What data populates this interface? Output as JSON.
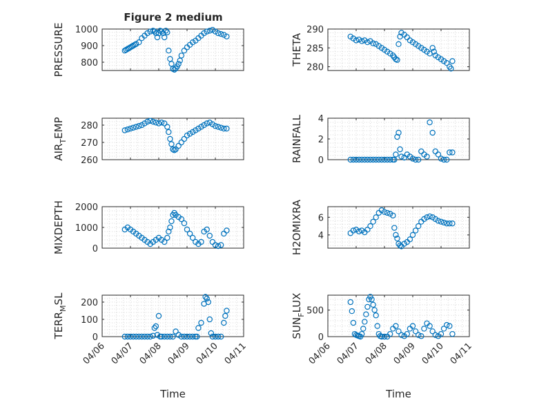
{
  "figure_title": "Figure 2 medium",
  "colors": {
    "marker": "#0072BD",
    "axes": "#262626",
    "grid": "#d6d6d6"
  },
  "chart_data": [
    {
      "type": "scatter",
      "name": "pressure",
      "ylabel": "PRESSURE",
      "ylabel_main": "PRESSURE",
      "ylabel_sub": "",
      "ylabel_rest": "",
      "title": "Figure 2 medium",
      "xlim": [
        0,
        5
      ],
      "ylim": [
        750,
        1000
      ],
      "yticks": [
        800,
        900,
        1000
      ],
      "ytick_labels": [
        "800",
        "900",
        "1000"
      ],
      "xticks": [
        0,
        1,
        2,
        3,
        4,
        5
      ],
      "xtick_labels": [
        "04/06",
        "04/07",
        "04/08",
        "04/09",
        "04/10",
        "04/11"
      ],
      "show_xtick_labels": false,
      "xlabel": "",
      "grid": true,
      "x": [
        0.8,
        0.85,
        0.9,
        0.95,
        1.0,
        1.05,
        1.1,
        1.15,
        1.2,
        1.3,
        1.4,
        1.5,
        1.6,
        1.7,
        1.8,
        1.85,
        1.9,
        1.95,
        2.0,
        2.05,
        2.1,
        2.15,
        2.2,
        2.25,
        2.3,
        2.35,
        2.4,
        2.45,
        2.5,
        2.55,
        2.6,
        2.65,
        2.7,
        2.75,
        2.8,
        2.9,
        3.0,
        3.1,
        3.2,
        3.3,
        3.4,
        3.5,
        3.6,
        3.7,
        3.8,
        3.9,
        4.0,
        4.1,
        4.2,
        4.3,
        4.4
      ],
      "y": [
        870,
        875,
        880,
        885,
        890,
        895,
        900,
        905,
        910,
        920,
        945,
        960,
        975,
        985,
        990,
        985,
        975,
        950,
        975,
        990,
        985,
        975,
        950,
        990,
        980,
        870,
        820,
        790,
        760,
        755,
        762,
        775,
        790,
        810,
        840,
        870,
        890,
        905,
        920,
        930,
        945,
        960,
        975,
        985,
        990,
        995,
        985,
        975,
        970,
        965,
        955
      ]
    },
    {
      "type": "scatter",
      "name": "theta",
      "ylabel": "THETA",
      "ylabel_main": "THETA",
      "ylabel_sub": "",
      "ylabel_rest": "",
      "xlim": [
        0,
        5
      ],
      "ylim": [
        279,
        290
      ],
      "yticks": [
        280,
        285,
        290
      ],
      "ytick_labels": [
        "280",
        "285",
        "290"
      ],
      "xticks": [
        0,
        1,
        2,
        3,
        4,
        5
      ],
      "xtick_labels": [
        "04/06",
        "04/07",
        "04/08",
        "04/09",
        "04/10",
        "04/11"
      ],
      "show_xtick_labels": false,
      "xlabel": "",
      "grid": true,
      "x": [
        0.8,
        0.9,
        1.0,
        1.1,
        1.2,
        1.3,
        1.4,
        1.5,
        1.6,
        1.7,
        1.8,
        1.9,
        2.0,
        2.1,
        2.2,
        2.3,
        2.35,
        2.4,
        2.45,
        2.5,
        2.55,
        2.6,
        2.7,
        2.8,
        2.9,
        3.0,
        3.1,
        3.2,
        3.3,
        3.4,
        3.5,
        3.6,
        3.7,
        3.75,
        3.8,
        3.9,
        4.0,
        4.1,
        4.2,
        4.3,
        4.35,
        4.4
      ],
      "y": [
        288,
        287.5,
        287,
        287.2,
        286.8,
        287,
        286.5,
        286.8,
        286.2,
        286,
        285.5,
        285,
        284.5,
        284,
        283.5,
        283,
        282.5,
        282,
        281.8,
        286,
        288,
        289,
        288.5,
        287.8,
        287,
        286.5,
        286,
        285.5,
        285,
        284.5,
        284,
        283.5,
        285,
        284,
        283,
        282.5,
        282,
        281.5,
        281,
        280,
        279.5,
        281.5
      ]
    },
    {
      "type": "scatter",
      "name": "air-temp",
      "ylabel": "AIR_TEMP",
      "ylabel_main": "AIR",
      "ylabel_sub": "T",
      "ylabel_rest": "EMP",
      "xlim": [
        0,
        5
      ],
      "ylim": [
        260,
        284
      ],
      "yticks": [
        260,
        270,
        280
      ],
      "ytick_labels": [
        "260",
        "270",
        "280"
      ],
      "xticks": [
        0,
        1,
        2,
        3,
        4,
        5
      ],
      "xtick_labels": [
        "04/06",
        "04/07",
        "04/08",
        "04/09",
        "04/10",
        "04/11"
      ],
      "show_xtick_labels": false,
      "xlabel": "",
      "grid": true,
      "x": [
        0.8,
        0.9,
        1.0,
        1.1,
        1.2,
        1.3,
        1.4,
        1.5,
        1.6,
        1.7,
        1.8,
        1.9,
        2.0,
        2.1,
        2.2,
        2.3,
        2.35,
        2.4,
        2.45,
        2.5,
        2.55,
        2.6,
        2.7,
        2.8,
        2.9,
        3.0,
        3.1,
        3.2,
        3.3,
        3.4,
        3.5,
        3.6,
        3.7,
        3.8,
        3.9,
        4.0,
        4.1,
        4.2,
        4.3,
        4.4
      ],
      "y": [
        277,
        277.5,
        278,
        278.5,
        279,
        279.5,
        280,
        281,
        282,
        282.5,
        282,
        281.5,
        281,
        281.5,
        281,
        279,
        276,
        272,
        269,
        266,
        265.5,
        266,
        268,
        270,
        272,
        274,
        275,
        276,
        277,
        278,
        279,
        280,
        281,
        281.5,
        280.5,
        279.5,
        279,
        278.5,
        278,
        278
      ]
    },
    {
      "type": "scatter",
      "name": "rainfall",
      "ylabel": "RAINFALL",
      "ylabel_main": "RAINFALL",
      "ylabel_sub": "",
      "ylabel_rest": "",
      "xlim": [
        0,
        5
      ],
      "ylim": [
        0,
        4
      ],
      "yticks": [
        0,
        2,
        4
      ],
      "ytick_labels": [
        "0",
        "2",
        "4"
      ],
      "xticks": [
        0,
        1,
        2,
        3,
        4,
        5
      ],
      "xtick_labels": [
        "04/06",
        "04/07",
        "04/08",
        "04/09",
        "04/10",
        "04/11"
      ],
      "show_xtick_labels": false,
      "xlabel": "",
      "grid": true,
      "x": [
        0.8,
        0.9,
        1.0,
        1.1,
        1.2,
        1.3,
        1.4,
        1.5,
        1.6,
        1.7,
        1.8,
        1.9,
        2.0,
        2.1,
        2.2,
        2.3,
        2.35,
        2.4,
        2.45,
        2.5,
        2.55,
        2.6,
        2.7,
        2.8,
        2.9,
        3.0,
        3.1,
        3.2,
        3.3,
        3.4,
        3.5,
        3.6,
        3.7,
        3.8,
        3.9,
        4.0,
        4.1,
        4.2,
        4.3,
        4.4
      ],
      "y": [
        0,
        0,
        0,
        0,
        0,
        0,
        0,
        0,
        0,
        0,
        0,
        0,
        0,
        0,
        0,
        0,
        0,
        0.5,
        2.2,
        2.6,
        1.0,
        0.3,
        0.2,
        0.5,
        0.3,
        0.1,
        0,
        0,
        0.8,
        0.5,
        0.3,
        3.6,
        2.6,
        0.8,
        0.5,
        0.1,
        0,
        0,
        0.7,
        0.7
      ]
    },
    {
      "type": "scatter",
      "name": "mixdepth",
      "ylabel": "MIXDEPTH",
      "ylabel_main": "MIXDEPTH",
      "ylabel_sub": "",
      "ylabel_rest": "",
      "xlim": [
        0,
        5
      ],
      "ylim": [
        0,
        2000
      ],
      "yticks": [
        0,
        1000,
        2000
      ],
      "ytick_labels": [
        "0",
        "1000",
        "2000"
      ],
      "xticks": [
        0,
        1,
        2,
        3,
        4,
        5
      ],
      "xtick_labels": [
        "04/06",
        "04/07",
        "04/08",
        "04/09",
        "04/10",
        "04/11"
      ],
      "show_xtick_labels": false,
      "xlabel": "",
      "grid": true,
      "x": [
        0.8,
        0.9,
        1.0,
        1.1,
        1.2,
        1.3,
        1.4,
        1.5,
        1.6,
        1.7,
        1.8,
        1.9,
        2.0,
        2.1,
        2.2,
        2.3,
        2.35,
        2.4,
        2.45,
        2.5,
        2.55,
        2.6,
        2.7,
        2.8,
        2.9,
        3.0,
        3.1,
        3.2,
        3.3,
        3.4,
        3.5,
        3.6,
        3.7,
        3.8,
        3.9,
        4.0,
        4.1,
        4.2,
        4.3,
        4.4
      ],
      "y": [
        900,
        1000,
        900,
        800,
        700,
        600,
        500,
        400,
        300,
        200,
        300,
        400,
        500,
        400,
        300,
        500,
        800,
        1000,
        1300,
        1600,
        1700,
        1600,
        1500,
        1400,
        1200,
        900,
        700,
        500,
        300,
        200,
        300,
        800,
        900,
        600,
        300,
        150,
        100,
        150,
        700,
        850
      ]
    },
    {
      "type": "scatter",
      "name": "h2omixra",
      "ylabel": "H2OMIXRA",
      "ylabel_main": "H2OMIXRA",
      "ylabel_sub": "",
      "ylabel_rest": "",
      "xlim": [
        0,
        5
      ],
      "ylim": [
        2.5,
        7.2
      ],
      "yticks": [
        4,
        6
      ],
      "ytick_labels": [
        "4",
        "6"
      ],
      "xticks": [
        0,
        1,
        2,
        3,
        4,
        5
      ],
      "xtick_labels": [
        "04/06",
        "04/07",
        "04/08",
        "04/09",
        "04/10",
        "04/11"
      ],
      "show_xtick_labels": false,
      "xlabel": "",
      "grid": true,
      "x": [
        0.8,
        0.9,
        1.0,
        1.1,
        1.2,
        1.3,
        1.4,
        1.5,
        1.6,
        1.7,
        1.8,
        1.9,
        2.0,
        2.1,
        2.2,
        2.3,
        2.35,
        2.4,
        2.45,
        2.5,
        2.55,
        2.6,
        2.7,
        2.8,
        2.9,
        3.0,
        3.1,
        3.2,
        3.3,
        3.4,
        3.5,
        3.6,
        3.7,
        3.8,
        3.9,
        4.0,
        4.1,
        4.2,
        4.3,
        4.4
      ],
      "y": [
        4.2,
        4.5,
        4.6,
        4.4,
        4.5,
        4.3,
        4.6,
        5.0,
        5.5,
        6.0,
        6.5,
        6.8,
        6.6,
        6.5,
        6.4,
        6.2,
        4.8,
        4.0,
        3.6,
        3.0,
        2.8,
        2.7,
        3.0,
        3.2,
        3.5,
        4.0,
        4.5,
        5.0,
        5.5,
        5.8,
        6.0,
        6.1,
        6.0,
        5.8,
        5.6,
        5.5,
        5.4,
        5.3,
        5.3,
        5.3
      ]
    },
    {
      "type": "scatter",
      "name": "terr-msl",
      "ylabel": "TERR_MSL",
      "ylabel_main": "TERR",
      "ylabel_sub": "M",
      "ylabel_rest": "SL",
      "xlim": [
        0,
        5
      ],
      "ylim": [
        0,
        240
      ],
      "yticks": [
        0,
        100,
        200
      ],
      "ytick_labels": [
        "0",
        "100",
        "200"
      ],
      "xticks": [
        0,
        1,
        2,
        3,
        4,
        5
      ],
      "xtick_labels": [
        "04/06",
        "04/07",
        "04/08",
        "04/09",
        "04/10",
        "04/11"
      ],
      "show_xtick_labels": true,
      "xlabel": "Time",
      "grid": true,
      "x": [
        0.8,
        0.9,
        1.0,
        1.1,
        1.2,
        1.3,
        1.4,
        1.5,
        1.6,
        1.7,
        1.8,
        1.85,
        1.9,
        1.95,
        2.0,
        2.05,
        2.1,
        2.2,
        2.3,
        2.4,
        2.5,
        2.6,
        2.7,
        2.8,
        2.9,
        3.0,
        3.1,
        3.2,
        3.3,
        3.35,
        3.4,
        3.5,
        3.6,
        3.65,
        3.7,
        3.75,
        3.8,
        3.85,
        3.9,
        4.0,
        4.1,
        4.2,
        4.3,
        4.35,
        4.4
      ],
      "y": [
        0,
        0,
        0,
        0,
        0,
        0,
        0,
        0,
        0,
        0,
        5,
        50,
        60,
        10,
        120,
        0,
        0,
        0,
        0,
        0,
        0,
        30,
        10,
        0,
        0,
        0,
        0,
        0,
        0,
        0,
        50,
        80,
        190,
        230,
        220,
        200,
        100,
        20,
        0,
        0,
        0,
        0,
        80,
        120,
        150
      ]
    },
    {
      "type": "scatter",
      "name": "sun-flux",
      "ylabel": "SUN_FLUX",
      "ylabel_main": "SUN",
      "ylabel_sub": "F",
      "ylabel_rest": "LUX",
      "xlim": [
        0,
        5
      ],
      "ylim": [
        0,
        780
      ],
      "yticks": [
        0,
        500
      ],
      "ytick_labels": [
        "0",
        "500"
      ],
      "xticks": [
        0,
        1,
        2,
        3,
        4,
        5
      ],
      "xtick_labels": [
        "04/06",
        "04/07",
        "04/08",
        "04/09",
        "04/10",
        "04/11"
      ],
      "show_xtick_labels": true,
      "xlabel": "Time",
      "grid": true,
      "x": [
        0.8,
        0.85,
        0.9,
        0.95,
        1.0,
        1.05,
        1.1,
        1.15,
        1.2,
        1.25,
        1.3,
        1.35,
        1.4,
        1.45,
        1.5,
        1.55,
        1.6,
        1.65,
        1.7,
        1.75,
        1.8,
        1.85,
        1.9,
        2.0,
        2.1,
        2.2,
        2.3,
        2.4,
        2.5,
        2.6,
        2.7,
        2.8,
        2.9,
        3.0,
        3.1,
        3.2,
        3.3,
        3.4,
        3.5,
        3.6,
        3.7,
        3.8,
        3.9,
        4.0,
        4.1,
        4.2,
        4.3,
        4.4
      ],
      "y": [
        650,
        480,
        260,
        50,
        30,
        20,
        10,
        0,
        50,
        150,
        280,
        420,
        560,
        700,
        750,
        700,
        600,
        500,
        400,
        200,
        50,
        10,
        0,
        0,
        0,
        50,
        150,
        200,
        100,
        30,
        10,
        50,
        150,
        200,
        100,
        30,
        10,
        150,
        250,
        200,
        100,
        30,
        10,
        50,
        150,
        220,
        200,
        50
      ]
    }
  ]
}
